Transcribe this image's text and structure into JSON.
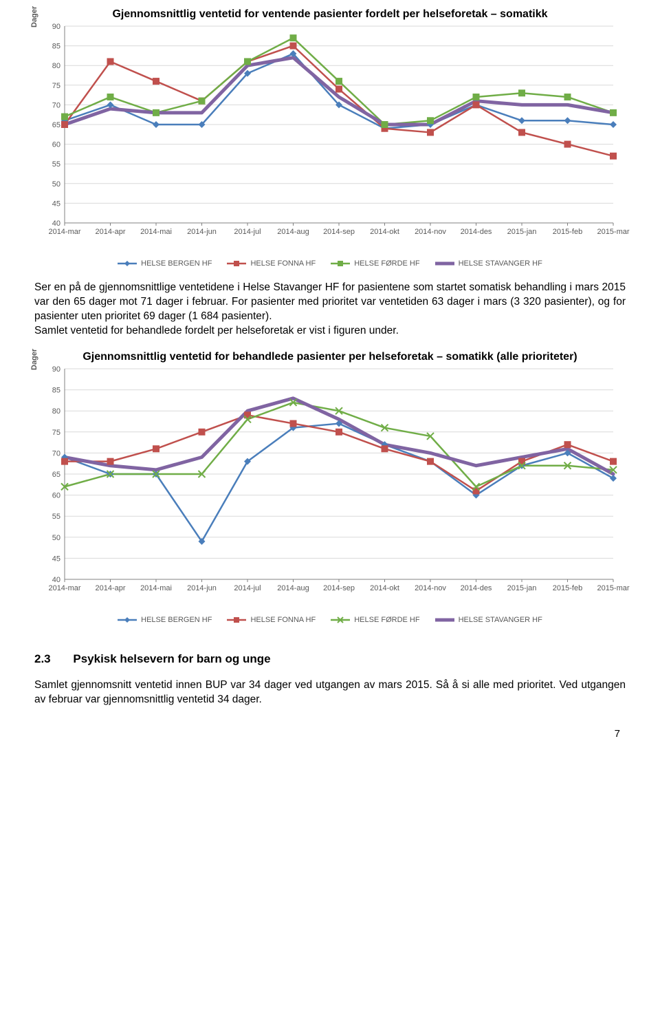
{
  "page_number": "7",
  "chart1": {
    "title": "Gjennomsnittlig ventetid for ventende pasienter fordelt per helseforetak – somatikk",
    "ylabel": "Dager",
    "ylim": [
      40,
      90
    ],
    "ytick_step": 5,
    "yticks": [
      "40",
      "45",
      "50",
      "55",
      "60",
      "65",
      "70",
      "75",
      "80",
      "85",
      "90"
    ],
    "categories": [
      "2014-mar",
      "2014-apr",
      "2014-mai",
      "2014-jun",
      "2014-jul",
      "2014-aug",
      "2014-sep",
      "2014-okt",
      "2014-nov",
      "2014-des",
      "2015-jan",
      "2015-feb",
      "2015-mar"
    ],
    "grid_color": "#d9d9d9",
    "axis_color": "#808080",
    "series": [
      {
        "name": "HELSE BERGEN HF",
        "color": "#4a7ebb",
        "marker": "diamond",
        "width": 2.5,
        "values": [
          66,
          70,
          65,
          65,
          78,
          83,
          70,
          64,
          65,
          70,
          66,
          66,
          65
        ]
      },
      {
        "name": "HELSE FONNA HF",
        "color": "#c0504d",
        "marker": "square",
        "width": 2.5,
        "values": [
          65,
          81,
          76,
          71,
          81,
          85,
          74,
          64,
          63,
          70,
          63,
          60,
          57
        ]
      },
      {
        "name": "HELSE FØRDE HF",
        "color": "#4bacc6",
        "marker": "square",
        "width": 2.5,
        "alt_color": "#70ad47",
        "values": [
          67,
          72,
          68,
          71,
          81,
          87,
          76,
          65,
          66,
          72,
          73,
          72,
          68
        ]
      },
      {
        "name": "HELSE STAVANGER HF",
        "color": "#8064a2",
        "marker": "none",
        "width": 5,
        "values": [
          65,
          69,
          68,
          68,
          80,
          82,
          72,
          65,
          65,
          71,
          70,
          70,
          68
        ]
      }
    ],
    "forde_color": "#70ad47"
  },
  "paragraph1": "Ser en på de gjennomsnittlige ventetidene i Helse Stavanger HF for pasientene som startet somatisk behandling i mars 2015 var den 65 dager mot 71 dager i februar. For pasienter med prioritet var ventetiden 63 dager i mars (3 320 pasienter), og for pasienter uten prioritet 69 dager (1 684 pasienter).",
  "paragraph2": "Samlet ventetid for behandlede fordelt per helseforetak er vist i figuren under.",
  "chart2": {
    "title": "Gjennomsnittlig ventetid for behandlede pasienter per helseforetak – somatikk (alle prioriteter)",
    "ylabel": "Dager",
    "ylim": [
      40,
      90
    ],
    "ytick_step": 5,
    "yticks": [
      "40",
      "45",
      "50",
      "55",
      "60",
      "65",
      "70",
      "75",
      "80",
      "85",
      "90"
    ],
    "categories": [
      "2014-mar",
      "2014-apr",
      "2014-mai",
      "2014-jun",
      "2014-jul",
      "2014-aug",
      "2014-sep",
      "2014-okt",
      "2014-nov",
      "2014-des",
      "2015-jan",
      "2015-feb",
      "2015-mar"
    ],
    "grid_color": "#d9d9d9",
    "axis_color": "#808080",
    "series": [
      {
        "name": "HELSE BERGEN HF",
        "color": "#4a7ebb",
        "marker": "diamond",
        "width": 2.5,
        "values": [
          69,
          65,
          65,
          49,
          68,
          76,
          77,
          72,
          68,
          60,
          67,
          70,
          64
        ]
      },
      {
        "name": "HELSE FONNA HF",
        "color": "#c0504d",
        "marker": "square",
        "width": 2.5,
        "values": [
          68,
          68,
          71,
          75,
          79,
          77,
          75,
          71,
          68,
          61,
          68,
          72,
          68
        ]
      },
      {
        "name": "HELSE FØRDE HF",
        "color": "#70ad47",
        "marker": "star",
        "width": 2.5,
        "values": [
          62,
          65,
          65,
          65,
          78,
          82,
          80,
          76,
          74,
          62,
          67,
          67,
          66
        ]
      },
      {
        "name": "HELSE STAVANGER HF",
        "color": "#8064a2",
        "marker": "none",
        "width": 5,
        "values": [
          69,
          67,
          66,
          69,
          80,
          83,
          78,
          72,
          70,
          67,
          69,
          71,
          65
        ]
      }
    ]
  },
  "section": {
    "num": "2.3",
    "title": "Psykisk helsevern for barn og unge"
  },
  "paragraph3": "Samlet gjennomsnitt ventetid innen BUP var 34 dager ved utgangen av mars 2015. Så å si alle med prioritet. Ved utgangen av februar var gjennomsnittlig ventetid 34 dager."
}
